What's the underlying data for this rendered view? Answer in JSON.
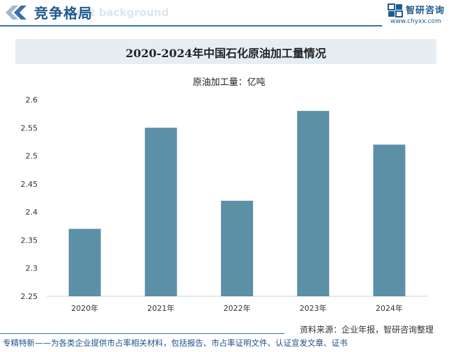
{
  "header": {
    "title": "竞争格局",
    "ghost_text": "nent background"
  },
  "logo": {
    "name": "智研咨询",
    "url": "www.chyxx.com"
  },
  "chart_data": {
    "type": "bar",
    "title": "2020-2024年中国石化原油加工量情况",
    "unit_label": "原油加工量：亿吨",
    "categories": [
      "2020年",
      "2021年",
      "2022年",
      "2023年",
      "2024年"
    ],
    "values": [
      2.37,
      2.55,
      2.42,
      2.58,
      2.52
    ],
    "ylim": [
      2.25,
      2.6
    ],
    "yticks": [
      "2.25",
      "2.3",
      "2.35",
      "2.4",
      "2.45",
      "2.5",
      "2.55",
      "2.6"
    ],
    "bar_color": "#5b90a7",
    "grid": false,
    "legend": "none"
  },
  "source_text": "资料来源：企业年报，智研咨询整理",
  "footer_text": "专精特新——为各类企业提供市占率相关材料，包括报告、市占率证明文件、认证宣发文章、证书",
  "colors": {
    "accent": "#1e5a8c",
    "bar": "#5b90a7",
    "title_band": "#e6edf3"
  }
}
